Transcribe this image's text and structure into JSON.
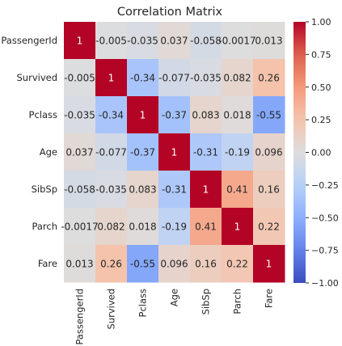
{
  "chart_data": {
    "type": "heatmap",
    "title": "Correlation Matrix",
    "row_labels": [
      "PassengerId",
      "Survived",
      "Pclass",
      "Age",
      "SibSp",
      "Parch",
      "Fare"
    ],
    "col_labels": [
      "PassengerId",
      "Survived",
      "Pclass",
      "Age",
      "SibSp",
      "Parch",
      "Fare"
    ],
    "values": [
      [
        1,
        -0.005,
        -0.035,
        0.037,
        -0.058,
        -0.0017,
        0.013
      ],
      [
        -0.005,
        1,
        -0.34,
        -0.077,
        -0.035,
        0.082,
        0.26
      ],
      [
        -0.035,
        -0.34,
        1,
        -0.37,
        0.083,
        0.018,
        -0.55
      ],
      [
        0.037,
        -0.077,
        -0.37,
        1,
        -0.31,
        -0.19,
        0.096
      ],
      [
        -0.058,
        -0.035,
        0.083,
        -0.31,
        1,
        0.41,
        0.16
      ],
      [
        -0.0017,
        0.082,
        0.018,
        -0.19,
        0.41,
        1,
        0.22
      ],
      [
        0.013,
        0.26,
        -0.55,
        0.096,
        0.16,
        0.22,
        1
      ]
    ],
    "cell_labels": [
      [
        "1",
        "-0.005",
        "-0.035",
        "0.037",
        "-0.058",
        "-0.0017",
        "0.013"
      ],
      [
        "-0.005",
        "1",
        "-0.34",
        "-0.077",
        "-0.035",
        "0.082",
        "0.26"
      ],
      [
        "-0.035",
        "-0.34",
        "1",
        "-0.37",
        "0.083",
        "0.018",
        "-0.55"
      ],
      [
        "0.037",
        "-0.077",
        "-0.37",
        "1",
        "-0.31",
        "-0.19",
        "0.096"
      ],
      [
        "-0.058",
        "-0.035",
        "0.083",
        "-0.31",
        "1",
        "0.41",
        "0.16"
      ],
      [
        "-0.0017",
        "0.082",
        "0.018",
        "-0.19",
        "0.41",
        "1",
        "0.22"
      ],
      [
        "0.013",
        "0.26",
        "-0.55",
        "0.096",
        "0.16",
        "0.22",
        "1"
      ]
    ],
    "colormap": "coolwarm",
    "vmin": -1,
    "vmax": 1,
    "colorbar_ticks": [
      -1.0,
      -0.75,
      -0.5,
      -0.25,
      0.0,
      0.25,
      0.5,
      0.75,
      1.0
    ],
    "colorbar_tick_labels": [
      "−1.00",
      "−0.75",
      "−0.50",
      "−0.25",
      "0.00",
      "0.25",
      "0.50",
      "0.75",
      "1.00"
    ],
    "colorbar_position": "right",
    "grid": false
  }
}
